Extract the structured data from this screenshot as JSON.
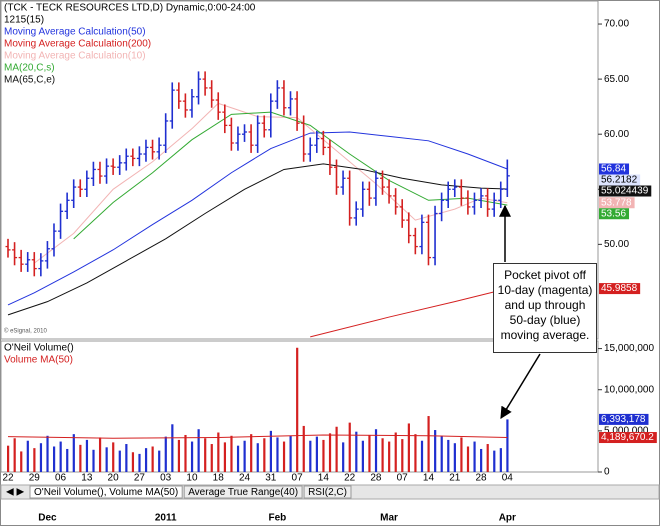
{
  "chart_data": [
    {
      "type": "ohlc",
      "title": "(TCK - TECK RESOURCES LTD,D) Dynamic,0:00-24:00",
      "subtitle": "1215(15)",
      "credit": "© eSignal, 2010",
      "categories": [
        "22",
        null,
        null,
        null,
        "29",
        null,
        null,
        null,
        "06",
        null,
        null,
        null,
        "13",
        null,
        null,
        null,
        "20",
        null,
        null,
        null,
        "27",
        null,
        null,
        null,
        "03",
        null,
        null,
        null,
        "10",
        null,
        null,
        null,
        "18",
        null,
        null,
        null,
        "24",
        null,
        null,
        null,
        "31",
        null,
        null,
        null,
        "07",
        null,
        null,
        null,
        "14",
        null,
        null,
        null,
        "22",
        null,
        null,
        null,
        "28",
        null,
        null,
        null,
        "07",
        null,
        null,
        null,
        "14",
        null,
        null,
        null,
        "21",
        null,
        null,
        null,
        "28",
        null,
        null,
        null,
        "04"
      ],
      "months": [
        null,
        null,
        null,
        null,
        null,
        null,
        "Dec",
        null,
        null,
        null,
        null,
        null,
        null,
        null,
        null,
        null,
        null,
        null,
        null,
        null,
        null,
        null,
        null,
        null,
        "2011",
        null,
        null,
        null,
        null,
        null,
        null,
        null,
        null,
        null,
        null,
        null,
        null,
        null,
        null,
        null,
        null,
        "Feb",
        null,
        null,
        null,
        null,
        null,
        null,
        null,
        null,
        null,
        null,
        null,
        null,
        null,
        null,
        null,
        null,
        "Mar",
        null,
        null,
        null,
        null,
        null,
        null,
        null,
        null,
        null,
        null,
        null,
        null,
        null,
        null,
        null,
        null,
        null,
        "Apr"
      ],
      "open": [
        49.8,
        49.5,
        48.8,
        48.2,
        48.6,
        47.8,
        48.5,
        49.6,
        51.2,
        53.0,
        54.0,
        55.2,
        55.0,
        56.0,
        56.8,
        56.2,
        57.1,
        57.0,
        57.4,
        58.0,
        57.8,
        58.2,
        58.8,
        58.4,
        59.0,
        61.2,
        64.0,
        63.0,
        62.2,
        63.4,
        65.0,
        64.2,
        63.1,
        62.0,
        60.8,
        59.2,
        60.0,
        60.2,
        59.0,
        61.0,
        60.4,
        63.0,
        64.2,
        62.4,
        63.2,
        61.0,
        58.2,
        59.0,
        59.6,
        58.8,
        57.0,
        55.2,
        56.0,
        52.4,
        53.2,
        55.0,
        54.2,
        56.0,
        55.2,
        54.4,
        53.4,
        52.2,
        50.8,
        49.8,
        52.0,
        48.8,
        52.8,
        54.0,
        55.0,
        55.2,
        54.2,
        53.4,
        54.0,
        54.4,
        53.2,
        54.0,
        55.0
      ],
      "high": [
        50.5,
        50.2,
        49.5,
        49.3,
        49.3,
        49.2,
        50.3,
        51.9,
        53.7,
        54.7,
        55.9,
        55.9,
        56.7,
        57.5,
        57.5,
        57.8,
        57.8,
        58.1,
        58.7,
        58.7,
        58.9,
        59.5,
        59.5,
        59.7,
        61.9,
        64.7,
        64.7,
        63.7,
        64.1,
        65.7,
        65.7,
        64.9,
        63.8,
        62.7,
        61.5,
        60.7,
        60.9,
        60.9,
        61.7,
        61.7,
        63.7,
        64.9,
        64.9,
        63.9,
        63.9,
        61.7,
        59.7,
        60.3,
        60.3,
        59.5,
        57.7,
        56.7,
        56.7,
        53.9,
        55.7,
        55.7,
        56.7,
        56.7,
        55.9,
        55.1,
        54.1,
        52.9,
        51.5,
        52.7,
        52.7,
        53.5,
        54.7,
        55.7,
        55.9,
        55.9,
        54.9,
        54.7,
        55.1,
        55.1,
        54.7,
        55.7,
        57.7
      ],
      "low": [
        48.8,
        48.1,
        47.5,
        47.5,
        47.1,
        47.1,
        47.8,
        48.9,
        50.5,
        52.3,
        53.3,
        54.3,
        54.3,
        55.3,
        55.5,
        55.5,
        56.3,
        56.3,
        56.7,
        57.1,
        57.1,
        57.5,
        57.7,
        57.7,
        58.3,
        60.5,
        62.3,
        61.5,
        61.5,
        62.7,
        63.5,
        62.4,
        61.3,
        60.1,
        58.5,
        58.5,
        59.3,
        58.3,
        58.3,
        59.7,
        59.7,
        62.3,
        61.7,
        61.7,
        60.3,
        57.5,
        57.5,
        58.3,
        58.1,
        56.3,
        54.5,
        54.5,
        51.7,
        51.7,
        52.5,
        53.5,
        53.5,
        54.5,
        53.7,
        52.7,
        51.5,
        50.1,
        49.1,
        49.1,
        48.1,
        48.1,
        52.1,
        53.3,
        54.3,
        53.5,
        52.7,
        52.7,
        53.3,
        52.5,
        52.5,
        53.3,
        54.3
      ],
      "close": [
        49.5,
        48.8,
        48.2,
        48.6,
        47.8,
        48.5,
        49.6,
        51.2,
        53.0,
        54.0,
        55.2,
        55.0,
        56.0,
        56.8,
        56.2,
        57.1,
        57.0,
        57.4,
        58.0,
        57.8,
        58.2,
        58.8,
        58.4,
        59.0,
        61.2,
        64.0,
        63.0,
        62.2,
        63.4,
        65.0,
        64.2,
        63.1,
        62.0,
        60.8,
        59.2,
        60.0,
        60.2,
        59.0,
        61.0,
        60.4,
        63.0,
        64.2,
        62.4,
        63.2,
        61.0,
        58.2,
        59.0,
        59.6,
        58.8,
        57.0,
        55.2,
        56.0,
        52.4,
        53.2,
        55.0,
        54.2,
        56.0,
        55.2,
        54.4,
        53.4,
        52.2,
        50.8,
        49.8,
        52.0,
        48.8,
        52.8,
        54.0,
        55.0,
        55.2,
        54.2,
        53.4,
        54.0,
        54.4,
        53.2,
        54.0,
        55.0,
        56.2182
      ],
      "up_color": "#1f2fd0",
      "down_color": "#d42020",
      "ylim": [
        41.5,
        72
      ],
      "yticks": [
        {
          "value": 50,
          "label": "50.00"
        },
        {
          "value": 55,
          "label": "55.00"
        },
        {
          "value": 60,
          "label": "60.00"
        },
        {
          "value": 65,
          "label": "65.00"
        },
        {
          "value": 70,
          "label": "70.00"
        }
      ],
      "series": [
        {
          "name": "Moving Average Calculation(50)",
          "color": "#2233dd",
          "x": [
            0,
            4,
            10,
            16,
            22,
            28,
            34,
            40,
            46,
            52,
            58,
            64,
            70,
            76
          ],
          "values": [
            44.5,
            45.6,
            47.5,
            49.5,
            51.8,
            54,
            56.5,
            58.7,
            60.1,
            60.2,
            59.8,
            59.4,
            58.2,
            56.84
          ]
        },
        {
          "name": "Moving Average Calculation(200)",
          "color": "#d42020",
          "x": [
            46,
            58,
            68,
            76
          ],
          "values": [
            41.6,
            43.4,
            44.8,
            45.9858
          ]
        },
        {
          "name": "Moving Average Calculation(10)",
          "color": "#f2b4b4",
          "x": [
            4,
            10,
            16,
            22,
            28,
            32,
            38,
            44,
            50,
            56,
            62,
            68,
            72,
            76
          ],
          "values": [
            48.3,
            51,
            55,
            57.5,
            60.5,
            62.8,
            61.6,
            61.5,
            58.5,
            55.5,
            52.2,
            53.2,
            54.2,
            53.778
          ]
        },
        {
          "name": "MA(20,C,s)",
          "color": "#33aa33",
          "x": [
            10,
            16,
            22,
            28,
            34,
            40,
            46,
            52,
            58,
            64,
            70,
            76
          ],
          "values": [
            50.5,
            53.8,
            56.5,
            59.5,
            61.8,
            62,
            60.8,
            58.2,
            55.8,
            54,
            54.2,
            53.56
          ]
        },
        {
          "name": "MA(65,C,e)",
          "color": "#111111",
          "x": [
            0,
            6,
            12,
            18,
            24,
            30,
            36,
            42,
            48,
            54,
            60,
            66,
            72,
            76
          ],
          "values": [
            43.6,
            44.8,
            46.5,
            48.5,
            50.5,
            52.8,
            55,
            56.8,
            57.3,
            56.8,
            56,
            55.4,
            55.1,
            55.024439
          ]
        }
      ]
    },
    {
      "type": "bar",
      "title": "O'Neil Volume()",
      "values": [
        3200000,
        4100000,
        2500000,
        3800000,
        2900000,
        3500000,
        4400000,
        3100000,
        3700000,
        2800000,
        4600000,
        3300000,
        3900000,
        2700000,
        4200000,
        3000000,
        3600000,
        2600000,
        3400000,
        2400000,
        2200000,
        2900000,
        3100000,
        2600000,
        4300000,
        5800000,
        3900000,
        4500000,
        3700000,
        5200000,
        4100000,
        3400000,
        4800000,
        3600000,
        4400000,
        3200000,
        3800000,
        4600000,
        3500000,
        4100000,
        5000000,
        4200000,
        3700000,
        4400000,
        15100000,
        5600000,
        3800000,
        4300000,
        3900000,
        4700000,
        5500000,
        3600000,
        6000000,
        4900000,
        3800000,
        4500000,
        5200000,
        4100000,
        3700000,
        4800000,
        4000000,
        5900000,
        4600000,
        3800000,
        6800000,
        5100000,
        4400000,
        3900000,
        3500000,
        4200000,
        3100000,
        3700000,
        2800000,
        3400000,
        2600000,
        2900000,
        6393178
      ],
      "last_label": "6,393,178",
      "ylim": [
        0,
        15800000
      ],
      "yticks": [
        0,
        {
          "value": 5000000,
          "label": "5,000,000"
        },
        {
          "value": 10000000,
          "label": "10,000,000"
        },
        {
          "value": 15000000,
          "label": "15,000,000"
        }
      ],
      "series": [
        {
          "name": "Volume MA(50)",
          "color": "#d42020",
          "x": [
            0,
            16,
            32,
            48,
            64,
            76
          ],
          "values": [
            4300000,
            4100000,
            4200000,
            4500000,
            4400000,
            4189670.2
          ],
          "last_label": "4,189,670.2"
        }
      ]
    }
  ],
  "annotation": "Pocket pivot off 10-day (magenta) and up through 50-day (blue) moving average.",
  "tabs": [
    "O'Neil Volume(), Volume MA(50)",
    "Average True Range(40)",
    "RSI(2,C)"
  ]
}
